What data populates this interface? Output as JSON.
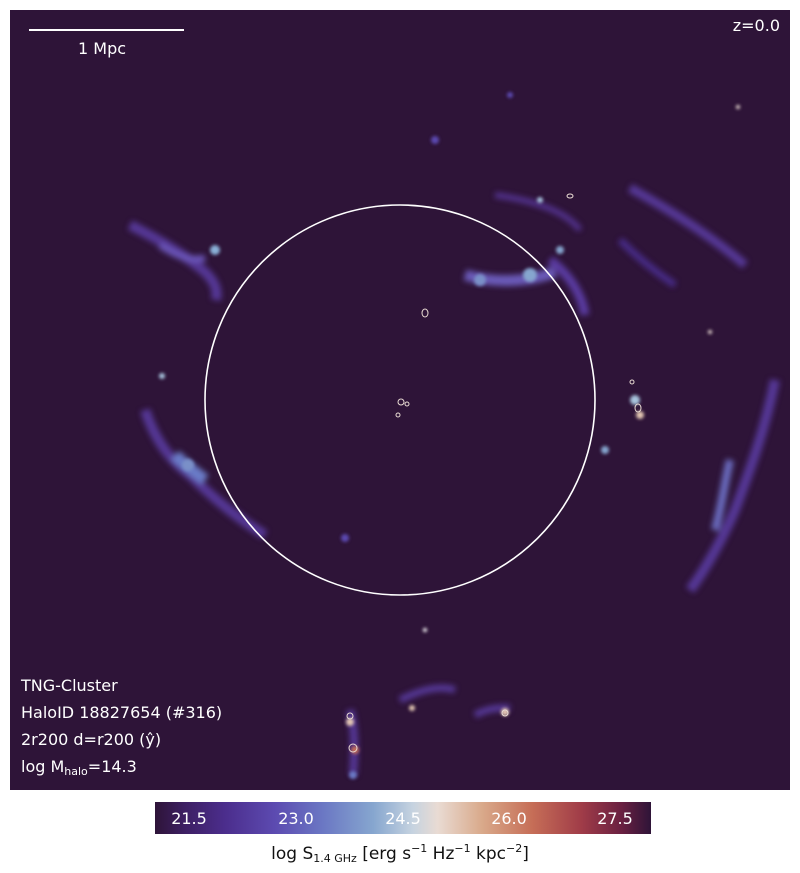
{
  "scalebar": {
    "label": "1 Mpc"
  },
  "redshift": "z=0.0",
  "info": {
    "simulation": "TNG-Cluster",
    "halo_id": "HaloID 18827654 (#316)",
    "projection": "2r200 d=r200 (ŷ)",
    "mass_label": "log M",
    "mass_sub": "halo",
    "mass_value": "=14.3"
  },
  "colorbar": {
    "ticks": [
      "21.5",
      "23.0",
      "24.5",
      "26.0",
      "27.5"
    ],
    "label_prefix": "log S",
    "label_sub": "1.4 GHz",
    "label_unit_a": " [erg s",
    "label_exp_a": "−1",
    "label_unit_b": " Hz",
    "label_exp_b": "−1",
    "label_unit_c": " kpc",
    "label_exp_c": "−2",
    "label_close": "]"
  },
  "colors": {
    "background": "#2e1438",
    "circle": "#ffffff"
  }
}
